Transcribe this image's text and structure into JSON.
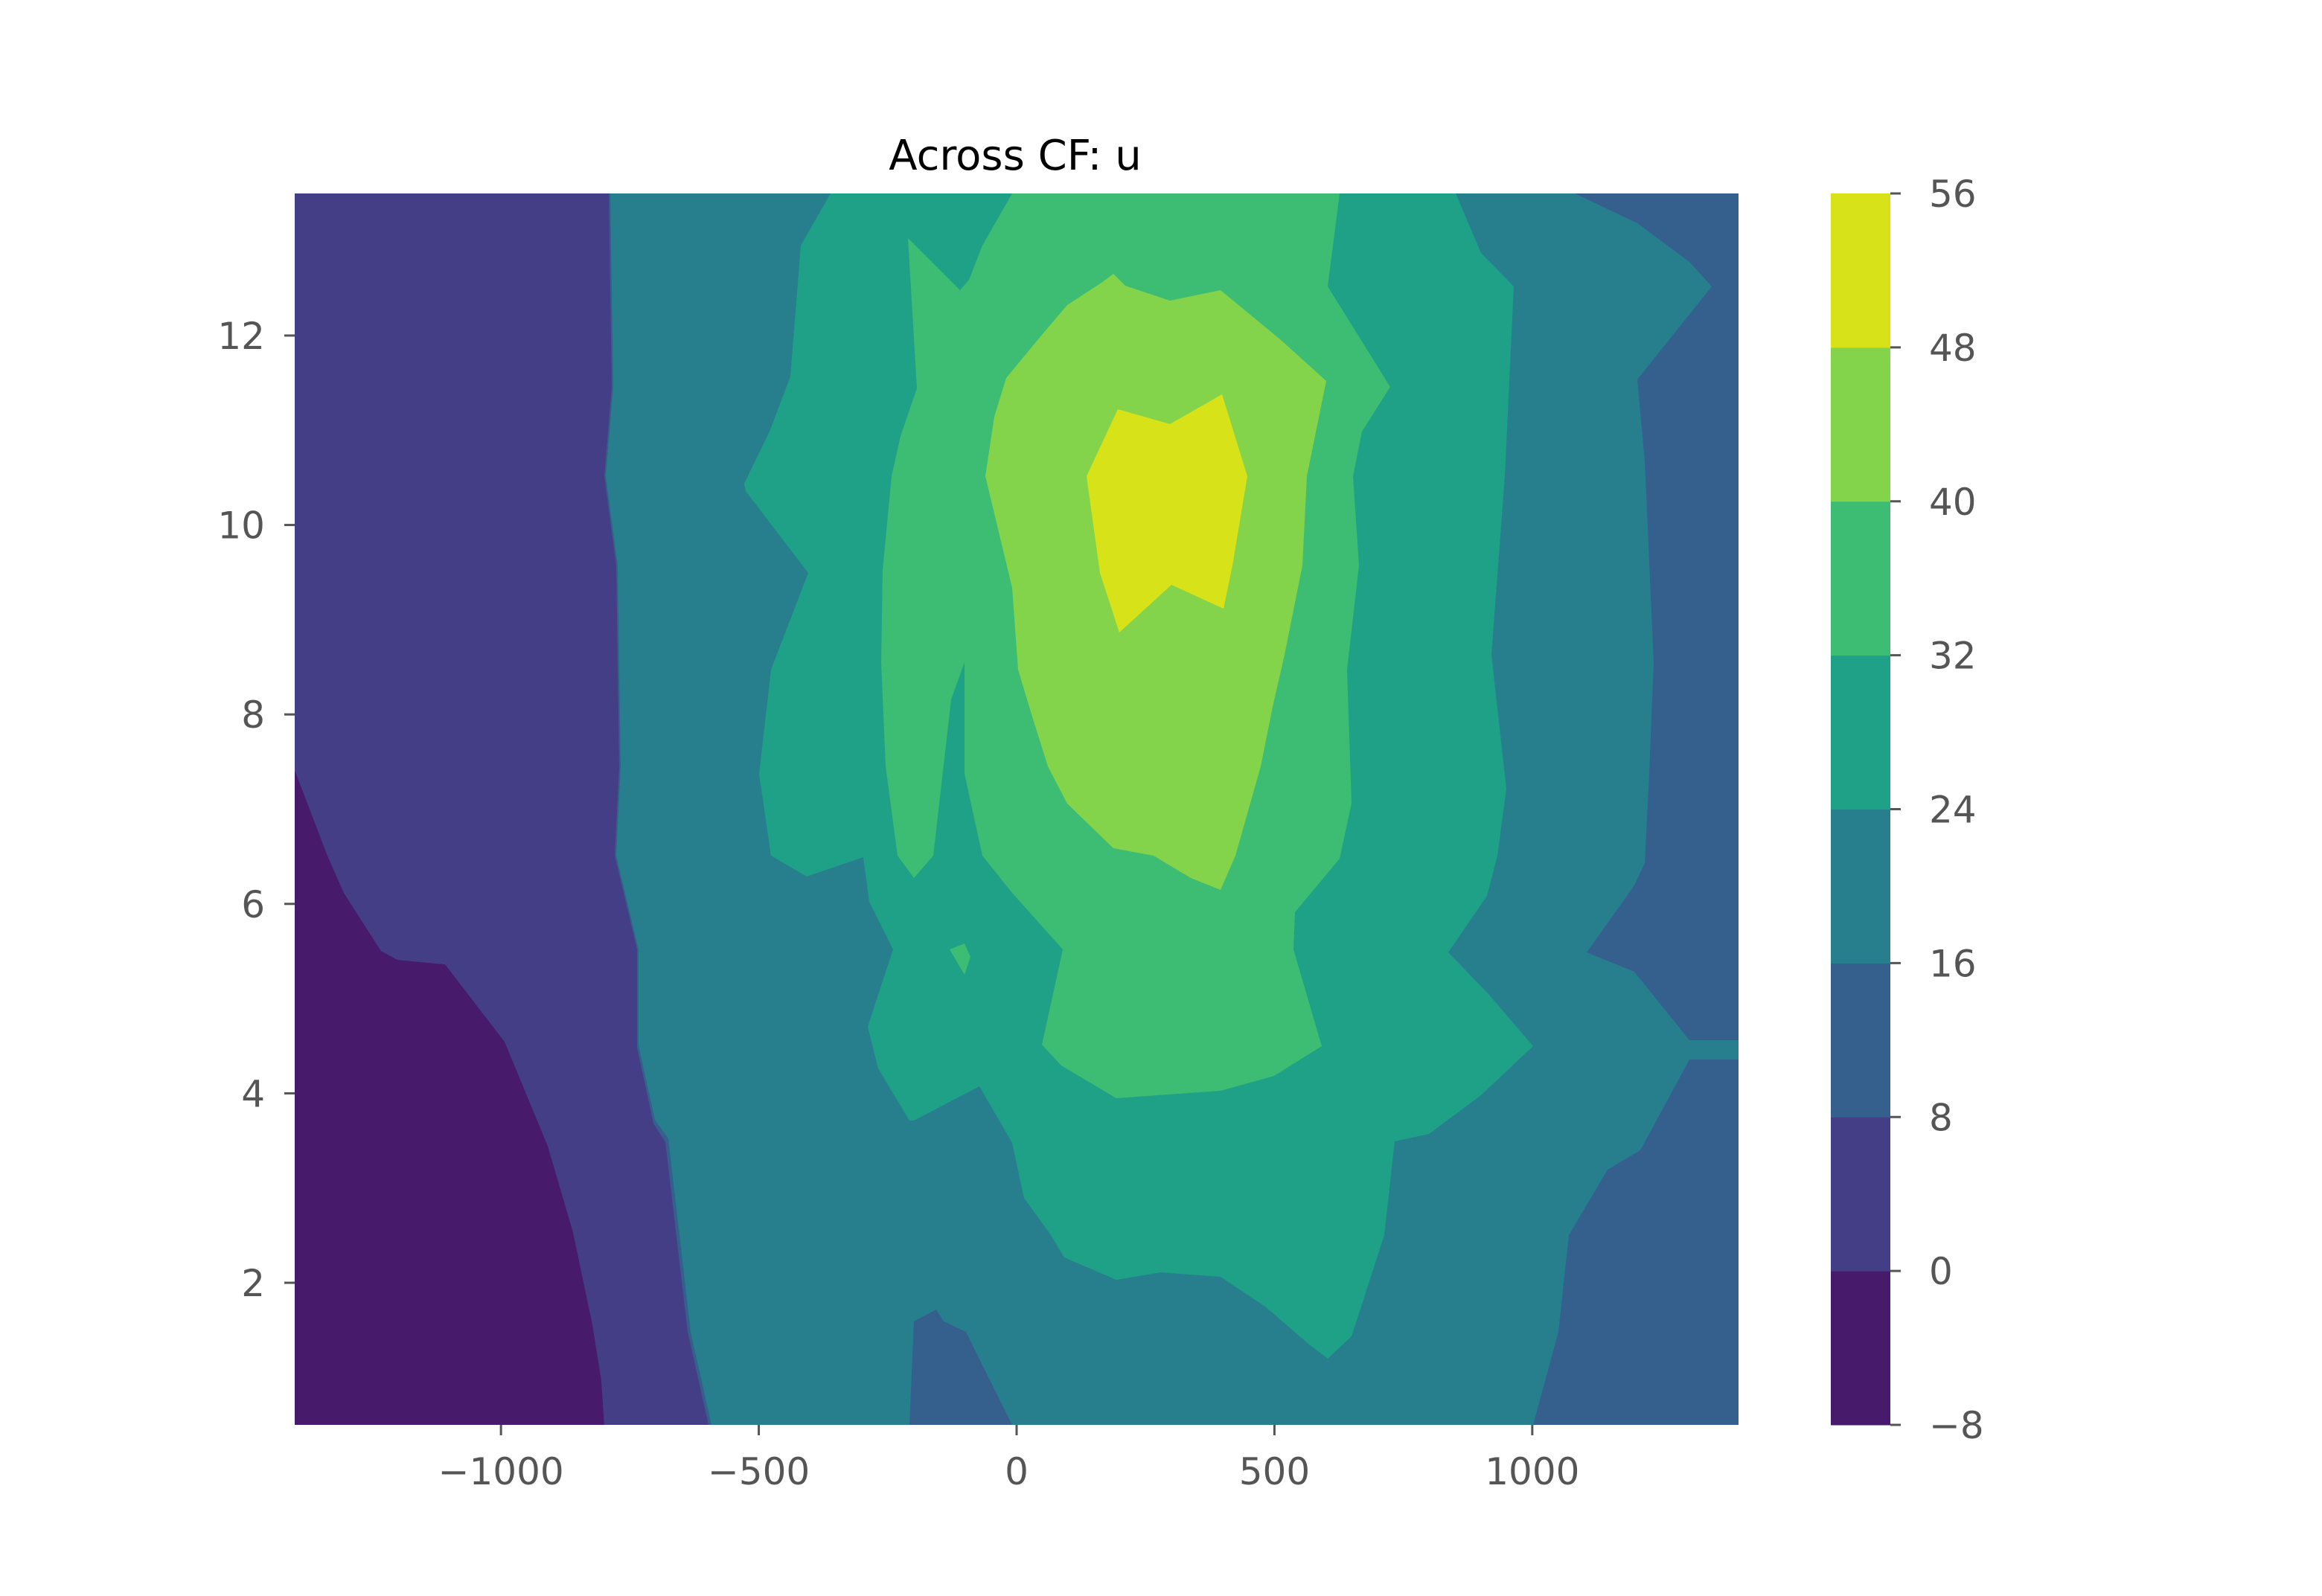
{
  "chart_data": {
    "type": "contour",
    "title": "Across CF: u",
    "xlabel": "",
    "ylabel": "",
    "xlim": [
      -1400,
      1400
    ],
    "ylim": [
      0.5,
      13.5
    ],
    "x_ticks": [
      {
        "value": -1000,
        "label": "−1000"
      },
      {
        "value": -500,
        "label": "−500"
      },
      {
        "value": 0,
        "label": "0"
      },
      {
        "value": 500,
        "label": "500"
      },
      {
        "value": 1000,
        "label": "1000"
      }
    ],
    "y_ticks": [
      {
        "value": 2,
        "label": "2"
      },
      {
        "value": 4,
        "label": "4"
      },
      {
        "value": 6,
        "label": "6"
      },
      {
        "value": 8,
        "label": "8"
      },
      {
        "value": 10,
        "label": "10"
      },
      {
        "value": 12,
        "label": "12"
      }
    ],
    "colormap": "viridis",
    "levels": [
      -8,
      0,
      8,
      16,
      24,
      32,
      40,
      48,
      56
    ],
    "level_labels": [
      "−8",
      "0",
      "8",
      "16",
      "24",
      "32",
      "40",
      "48",
      "56"
    ],
    "level_colors": [
      "#481a6c",
      "#433e85",
      "#35608d",
      "#277f8e",
      "#1fa187",
      "#3dbc74",
      "#84d44b",
      "#d8e219"
    ],
    "contours": [
      {
        "level": 0,
        "points": [
          [
            -800,
            13.5
          ],
          [
            -810,
            12.0
          ],
          [
            -790,
            10.5
          ],
          [
            -780,
            8.0
          ],
          [
            -780,
            6.5
          ],
          [
            -740,
            5.0
          ],
          [
            -730,
            4.0
          ],
          [
            -690,
            2.0
          ],
          [
            -660,
            0.5
          ]
        ]
      },
      {
        "level": 8,
        "points": [
          [
            -580,
            13.5
          ],
          [
            -580,
            11.0
          ],
          [
            -600,
            10.5
          ],
          [
            -590,
            8.5
          ],
          [
            -590,
            7.2
          ],
          [
            -640,
            6.5
          ],
          [
            -610,
            4.5
          ],
          [
            -600,
            3.0
          ],
          [
            -580,
            1.0
          ],
          [
            -580,
            0.5
          ]
        ]
      },
      {
        "level": 16,
        "points": [
          [
            -360,
            13.5
          ],
          [
            -400,
            12.0
          ],
          [
            -420,
            10.5
          ],
          [
            -400,
            9.5
          ],
          [
            -470,
            8.5
          ],
          [
            -490,
            7.0
          ],
          [
            -420,
            6.5
          ],
          [
            -380,
            4.0
          ],
          [
            -290,
            3.5
          ],
          [
            -280,
            2.0
          ],
          [
            -200,
            0.5
          ]
        ]
      },
      {
        "level": 24,
        "points": [
          [
            -120,
            13.5
          ],
          [
            -210,
            12.2
          ],
          [
            -310,
            10.5
          ],
          [
            -280,
            9.5
          ],
          [
            -260,
            7.5
          ],
          [
            -280,
            6.5
          ],
          [
            -260,
            5.0
          ],
          [
            -260,
            4.5
          ],
          [
            -180,
            3.5
          ],
          [
            0,
            2.5
          ],
          [
            100,
            1.5
          ],
          [
            300,
            0.8
          ]
        ]
      },
      {
        "level": 32,
        "points": [
          [
            -60,
            13.0
          ],
          [
            -180,
            12.0
          ],
          [
            -190,
            10.0
          ],
          [
            -240,
            8.5
          ],
          [
            -210,
            6.5
          ],
          [
            -100,
            5.5
          ],
          [
            80,
            4.8
          ],
          [
            200,
            3.8
          ],
          [
            400,
            3.9
          ],
          [
            600,
            4.5
          ],
          [
            520,
            5.7
          ],
          [
            650,
            6.5
          ]
        ]
      },
      {
        "level": 40,
        "points": [
          [
            100,
            11.8
          ],
          [
            -60,
            10.5
          ],
          [
            30,
            8.5
          ],
          [
            100,
            7.0
          ],
          [
            200,
            6.4
          ],
          [
            400,
            6.2
          ],
          [
            520,
            7.5
          ],
          [
            560,
            9.0
          ],
          [
            620,
            10.5
          ],
          [
            600,
            11.5
          ],
          [
            400,
            12.5
          ],
          [
            200,
            12.7
          ]
        ]
      },
      {
        "level": 48,
        "points": [
          [
            200,
            11.2
          ],
          [
            140,
            10.5
          ],
          [
            180,
            9.5
          ],
          [
            200,
            8.9
          ],
          [
            300,
            9.4
          ],
          [
            400,
            9.1
          ],
          [
            450,
            10.5
          ],
          [
            400,
            11.3
          ],
          [
            300,
            11.1
          ]
        ]
      }
    ]
  }
}
